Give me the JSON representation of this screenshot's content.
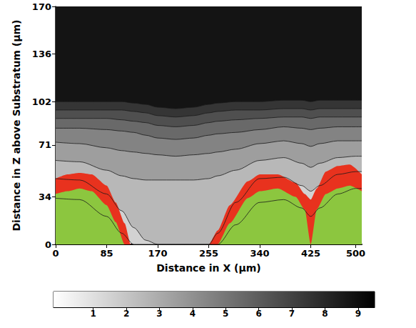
{
  "chart_data": {
    "type": "contour",
    "xlabel": "Distance in X (μm)",
    "ylabel": "Distance in Z above Substratum (μm)",
    "xlim": [
      0,
      510
    ],
    "ylim": [
      0,
      170
    ],
    "xticks": [
      0,
      85,
      170,
      255,
      340,
      425,
      500
    ],
    "yticks": [
      0,
      34,
      71,
      102,
      136,
      170
    ],
    "grid": false,
    "contours": {
      "x": [
        0,
        40,
        85,
        110,
        130,
        150,
        170,
        200,
        230,
        255,
        270,
        300,
        340,
        380,
        410,
        425,
        440,
        470,
        500,
        510
      ],
      "levels": [
        1,
        2,
        3,
        4,
        5,
        6,
        7,
        8
      ],
      "y": [
        [
          33,
          32,
          20,
          8,
          0,
          0,
          0,
          0,
          0,
          0,
          0,
          14,
          30,
          32,
          26,
          20,
          26,
          36,
          40,
          40
        ],
        [
          47,
          46,
          36,
          24,
          12,
          3,
          0,
          0,
          0,
          0,
          8,
          30,
          47,
          48,
          42,
          38,
          42,
          50,
          52,
          52
        ],
        [
          60,
          59,
          53,
          49,
          47,
          46,
          46,
          46,
          46,
          47,
          49,
          53,
          60,
          62,
          58,
          55,
          58,
          62,
          63,
          63
        ],
        [
          73,
          72,
          69,
          67,
          66,
          65,
          64,
          63,
          64,
          65,
          66,
          68,
          72,
          74,
          72,
          70,
          72,
          74,
          74,
          74
        ],
        [
          83,
          83,
          82,
          81,
          80,
          78,
          76,
          75,
          76,
          78,
          79,
          80,
          82,
          84,
          83,
          82,
          83,
          84,
          84,
          84
        ],
        [
          90,
          90,
          90,
          89,
          88,
          87,
          85,
          84,
          85,
          87,
          88,
          89,
          90,
          91,
          91,
          90,
          91,
          91,
          91,
          91
        ],
        [
          96,
          96,
          96,
          96,
          95,
          94,
          92,
          91,
          92,
          94,
          95,
          96,
          96,
          97,
          97,
          96,
          97,
          97,
          97,
          97
        ],
        [
          102,
          102,
          102,
          102,
          101,
          100,
          98,
          97,
          98,
          100,
          101,
          102,
          102,
          103,
          103,
          102,
          103,
          103,
          103,
          103
        ]
      ]
    },
    "biofilm": {
      "x": [
        0,
        20,
        40,
        60,
        85,
        100,
        115,
        125,
        255,
        270,
        290,
        320,
        340,
        370,
        400,
        415,
        425,
        435,
        450,
        470,
        490,
        510
      ],
      "outer": {
        "color": "#e8321e",
        "values": [
          47,
          50,
          51,
          50,
          42,
          30,
          15,
          0,
          0,
          10,
          28,
          45,
          50,
          50,
          44,
          36,
          32,
          40,
          52,
          56,
          57,
          50
        ]
      },
      "inner": {
        "color": "#8cc63f",
        "values": [
          36,
          38,
          40,
          38,
          28,
          16,
          0,
          0,
          0,
          0,
          15,
          33,
          38,
          40,
          34,
          25,
          0,
          25,
          36,
          40,
          42,
          38
        ]
      }
    },
    "colorbar": {
      "range": [
        -0.2,
        9.5
      ],
      "ticks": [
        1,
        2,
        3,
        4,
        5,
        6,
        7,
        8,
        9
      ]
    }
  }
}
